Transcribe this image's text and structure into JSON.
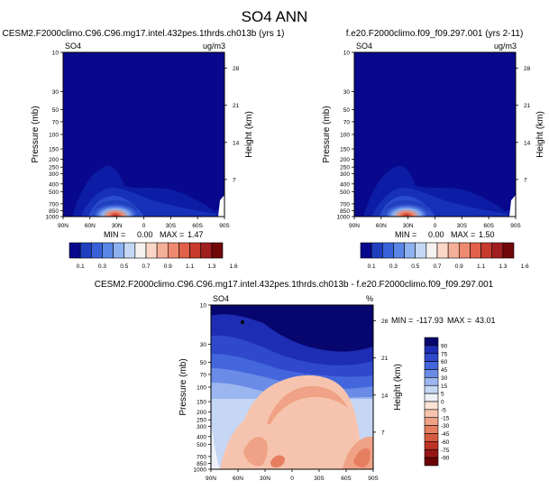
{
  "page_title": "SO4 ANN",
  "chart_data": [
    {
      "type": "heatmap",
      "title": "CESM2.F2000climo.C96.C96.mg17.intel.432pes.1thrds.ch013b (yrs 1)",
      "left_label": "SO4",
      "units": "ug/m3",
      "ylabel": "Pressure (mb)",
      "y2label": "Height (km)",
      "x_ticks": [
        "90N",
        "60N",
        "30N",
        "0",
        "30S",
        "60S",
        "90S"
      ],
      "xlim": [
        90,
        -90
      ],
      "y_ticks": [
        10,
        30,
        50,
        70,
        100,
        150,
        200,
        250,
        300,
        400,
        500,
        700,
        850,
        1000
      ],
      "ylim": [
        10,
        1000
      ],
      "y2_ticks": [
        28,
        21,
        14,
        7
      ],
      "stats": {
        "min_label": "MIN =",
        "min": "0.00",
        "max_label": "MAX =",
        "max": "1.47"
      }
    },
    {
      "type": "heatmap",
      "title": "f.e20.F2000climo.f09_f09.297.001 (yrs 2-11)",
      "left_label": "SO4",
      "units": "ug/m3",
      "ylabel": "Pressure (mb)",
      "y2label": "Height (km)",
      "x_ticks": [
        "90N",
        "60N",
        "30N",
        "0",
        "30S",
        "60S",
        "90S"
      ],
      "xlim": [
        90,
        -90
      ],
      "y_ticks": [
        10,
        30,
        50,
        70,
        100,
        150,
        200,
        250,
        300,
        400,
        500,
        700,
        850,
        1000
      ],
      "ylim": [
        10,
        1000
      ],
      "y2_ticks": [
        28,
        21,
        14,
        7
      ],
      "stats": {
        "min_label": "MIN =",
        "min": "0.00",
        "max_label": "MAX =",
        "max": "1.50"
      }
    },
    {
      "type": "heatmap",
      "title": "CESM2.F2000climo.C96.C96.mg17.intel.432pes.1thrds.ch013b - f.e20.F2000climo.f09_f09.297.001",
      "left_label": "SO4",
      "units": "%",
      "ylabel": "Pressure (mb)",
      "y2label": "Height (km)",
      "x_ticks": [
        "90N",
        "60N",
        "30N",
        "0",
        "30S",
        "60S",
        "90S"
      ],
      "xlim": [
        90,
        -90
      ],
      "y_ticks": [
        10,
        30,
        50,
        70,
        100,
        150,
        200,
        250,
        300,
        400,
        500,
        700,
        850,
        1000
      ],
      "ylim": [
        10,
        1000
      ],
      "y2_ticks": [
        28,
        21,
        14,
        7
      ],
      "stats": {
        "min_label": "MIN =",
        "min": "-117.93",
        "max_label": "MAX =",
        "max": "43.01"
      }
    }
  ],
  "top_colorbar": {
    "colors": [
      "#08088c",
      "#1f3fbf",
      "#3a62d8",
      "#5a86e6",
      "#8eb2f0",
      "#c4d8f6",
      "#f6f2f0",
      "#fbd6c6",
      "#f5b09a",
      "#ee8a70",
      "#e0604a",
      "#c83a2e",
      "#a01e1e",
      "#700808"
    ],
    "labels": [
      "0.1",
      "0.3",
      "0.5",
      "0.7",
      "0.9",
      "1.1",
      "1.3",
      "1.6"
    ]
  },
  "diff_colorbar": {
    "colors": [
      "#06066e",
      "#1d2db4",
      "#2f48cc",
      "#4466dc",
      "#6a8ce6",
      "#9cb6ef",
      "#c6d6f5",
      "#eef1f8",
      "#fbe3d6",
      "#f6c4ae",
      "#f0a286",
      "#e67e60",
      "#d65a40",
      "#bd3424",
      "#961616",
      "#6a0404"
    ],
    "labels": [
      "90",
      "75",
      "60",
      "45",
      "30",
      "15",
      "5",
      "0",
      "-5",
      "-15",
      "-30",
      "-45",
      "-60",
      "-75",
      "-90"
    ]
  }
}
